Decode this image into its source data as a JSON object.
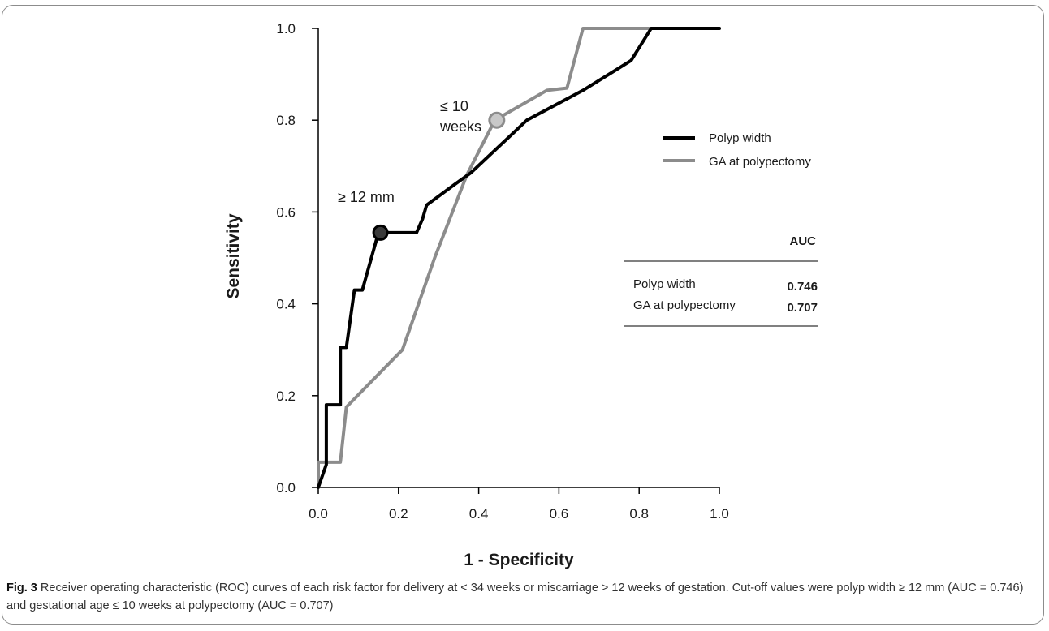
{
  "chart_data": {
    "type": "line",
    "xlabel": "1 - Specificity",
    "ylabel": "Sensitivity",
    "xlim": [
      0,
      1
    ],
    "ylim": [
      0,
      1
    ],
    "xticks": [
      "0.0",
      "0.2",
      "0.4",
      "0.6",
      "0.8",
      "1.0"
    ],
    "yticks": [
      "0.0",
      "0.2",
      "0.4",
      "0.6",
      "0.8",
      "1.0"
    ],
    "grid": false,
    "legend_position": "right",
    "series": [
      {
        "name": "Polyp width",
        "color": "#000000",
        "points": [
          [
            0.0,
            0.0
          ],
          [
            0.02,
            0.05
          ],
          [
            0.02,
            0.18
          ],
          [
            0.055,
            0.18
          ],
          [
            0.055,
            0.305
          ],
          [
            0.07,
            0.305
          ],
          [
            0.09,
            0.43
          ],
          [
            0.11,
            0.43
          ],
          [
            0.15,
            0.555
          ],
          [
            0.245,
            0.555
          ],
          [
            0.26,
            0.585
          ],
          [
            0.27,
            0.615
          ],
          [
            0.34,
            0.66
          ],
          [
            0.38,
            0.685
          ],
          [
            0.52,
            0.8
          ],
          [
            0.66,
            0.865
          ],
          [
            0.78,
            0.93
          ],
          [
            0.83,
            1.0
          ],
          [
            1.0,
            1.0
          ]
        ],
        "cutoff": {
          "x": 0.155,
          "y": 0.555,
          "label": "≥ 12 mm"
        }
      },
      {
        "name": "GA at polypectomy",
        "color": "#8c8c8c",
        "points": [
          [
            0.0,
            0.0
          ],
          [
            0.0,
            0.055
          ],
          [
            0.055,
            0.055
          ],
          [
            0.07,
            0.175
          ],
          [
            0.21,
            0.3
          ],
          [
            0.29,
            0.5
          ],
          [
            0.37,
            0.68
          ],
          [
            0.44,
            0.8
          ],
          [
            0.57,
            0.865
          ],
          [
            0.62,
            0.87
          ],
          [
            0.66,
            1.0
          ],
          [
            1.0,
            1.0
          ]
        ],
        "cutoff": {
          "x": 0.445,
          "y": 0.8,
          "label_line1": "≤ 10",
          "label_line2": "weeks"
        }
      }
    ],
    "auc_table": {
      "header": "AUC",
      "rows": [
        {
          "label": "Polyp width",
          "value": "0.746"
        },
        {
          "label": "GA at polypectomy",
          "value": "0.707"
        }
      ]
    }
  },
  "caption": {
    "label": "Fig. 3",
    "text": " Receiver operating characteristic (ROC) curves of each risk factor for delivery at < 34 weeks or miscarriage > 12 weeks of gestation. Cut-off values were polyp width ≥ 12 mm (AUC = 0.746) and gestational age ≤ 10 weeks at polypectomy (AUC = 0.707)"
  }
}
